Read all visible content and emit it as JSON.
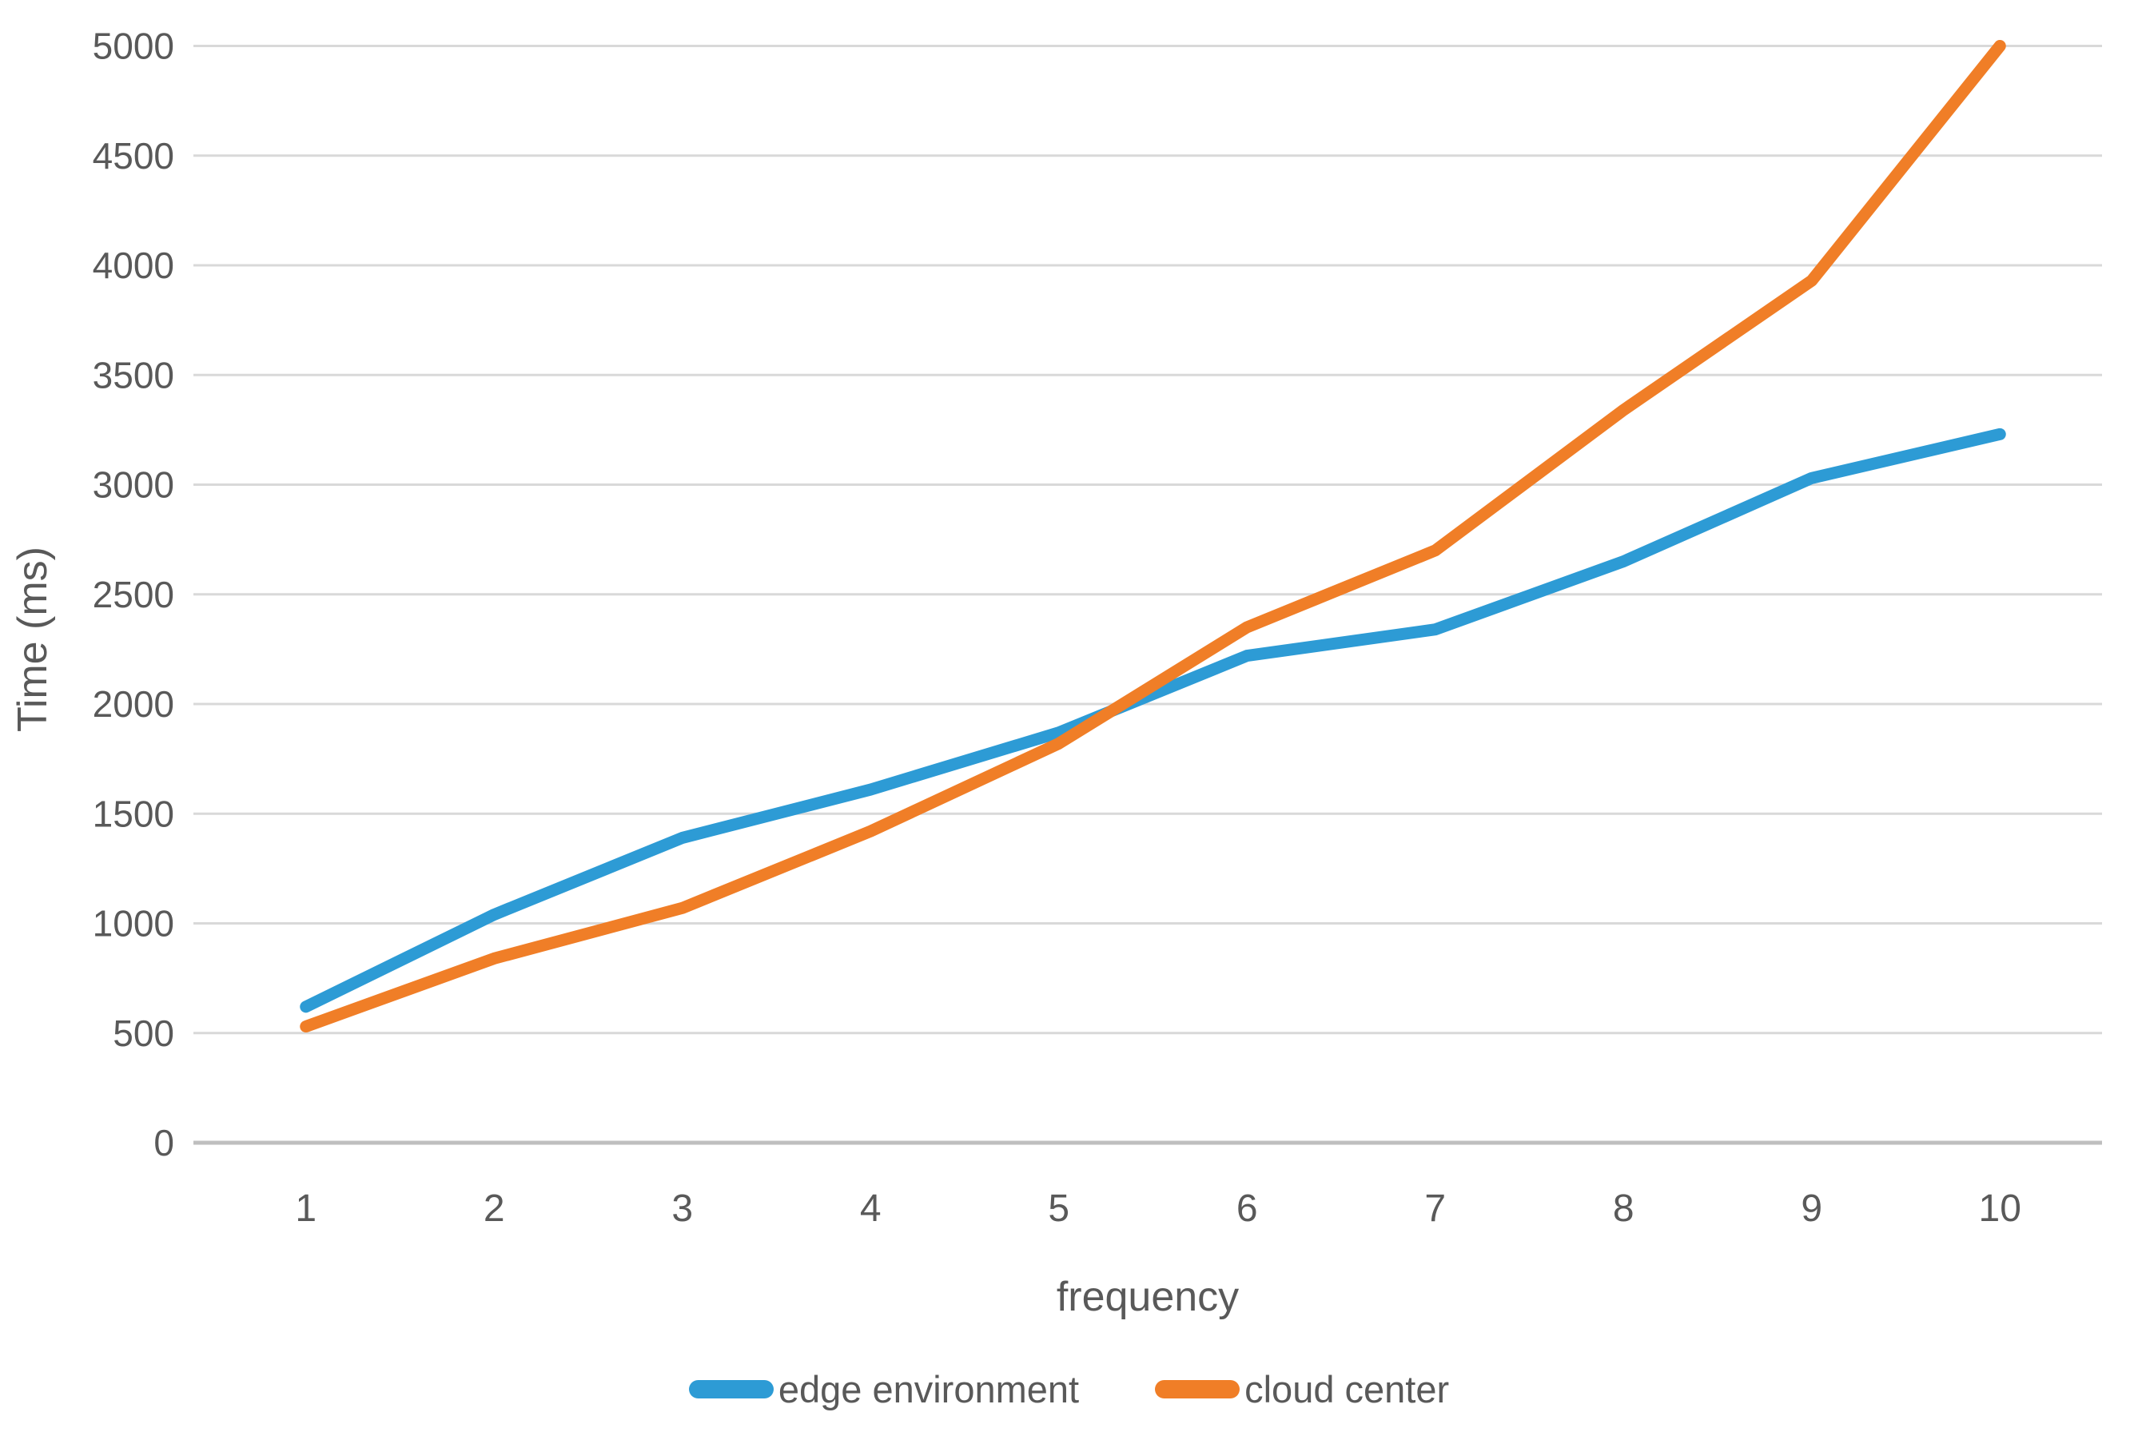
{
  "chart_data": {
    "type": "line",
    "title": "",
    "xlabel": "frequency",
    "ylabel": "Time (ms)",
    "categories": [
      "1",
      "2",
      "3",
      "4",
      "5",
      "6",
      "7",
      "8",
      "9",
      "10"
    ],
    "series": [
      {
        "name": "edge environment",
        "color": "#2D9BD5",
        "values": [
          620,
          1040,
          1390,
          1610,
          1870,
          2220,
          2340,
          2650,
          3030,
          3230
        ]
      },
      {
        "name": "cloud center",
        "color": "#F07E27",
        "values": [
          530,
          840,
          1070,
          1420,
          1820,
          2350,
          2700,
          3340,
          3930,
          5000
        ]
      }
    ],
    "ylim": [
      0,
      5000
    ],
    "yticks": [
      0,
      500,
      1000,
      1500,
      2000,
      2500,
      3000,
      3500,
      4000,
      4500,
      5000
    ],
    "grid": true,
    "legend_position": "bottom",
    "styles": {
      "gridline_color": "#D9D9D9",
      "axis_line_color": "#BFBFBF",
      "tick_label_color": "#595959",
      "axis_title_color": "#595959",
      "legend_label_color": "#595959",
      "background": "#FFFFFF"
    }
  }
}
